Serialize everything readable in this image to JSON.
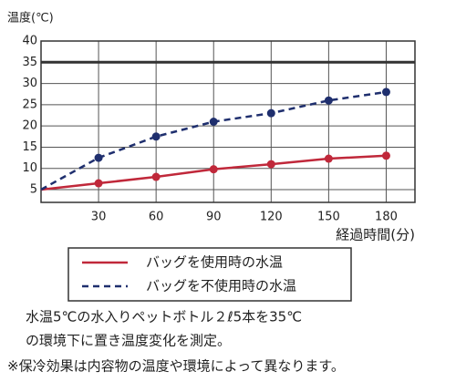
{
  "chart_data": {
    "type": "line",
    "ylabel": "温度(℃)",
    "xlabel": "経過時間(分)",
    "x": [
      0,
      30,
      60,
      90,
      120,
      150,
      180
    ],
    "series": [
      {
        "name": "バッグを使用時の水温",
        "color": "#c0283a",
        "dash": false,
        "values": [
          5,
          6.5,
          8,
          9.8,
          11,
          12.3,
          13
        ]
      },
      {
        "name": "バッグを不使用時の水温",
        "color": "#1f2f6e",
        "dash": true,
        "values": [
          5,
          12.5,
          17.5,
          21,
          23,
          26,
          28
        ]
      }
    ],
    "xlim": [
      0,
      195
    ],
    "xticks": [
      30,
      60,
      90,
      120,
      150,
      180
    ],
    "ylim": [
      2,
      40
    ],
    "yticks": [
      5,
      10,
      15,
      20,
      25,
      30,
      35,
      40
    ],
    "reference_line": 35,
    "grid": true,
    "notes": [
      "水温5℃の水入りペットボトル２ℓ5本を35℃",
      "の環境下に置き温度変化を測定。",
      "※保冷効果は内容物の温度や環境によって異なります。"
    ]
  }
}
